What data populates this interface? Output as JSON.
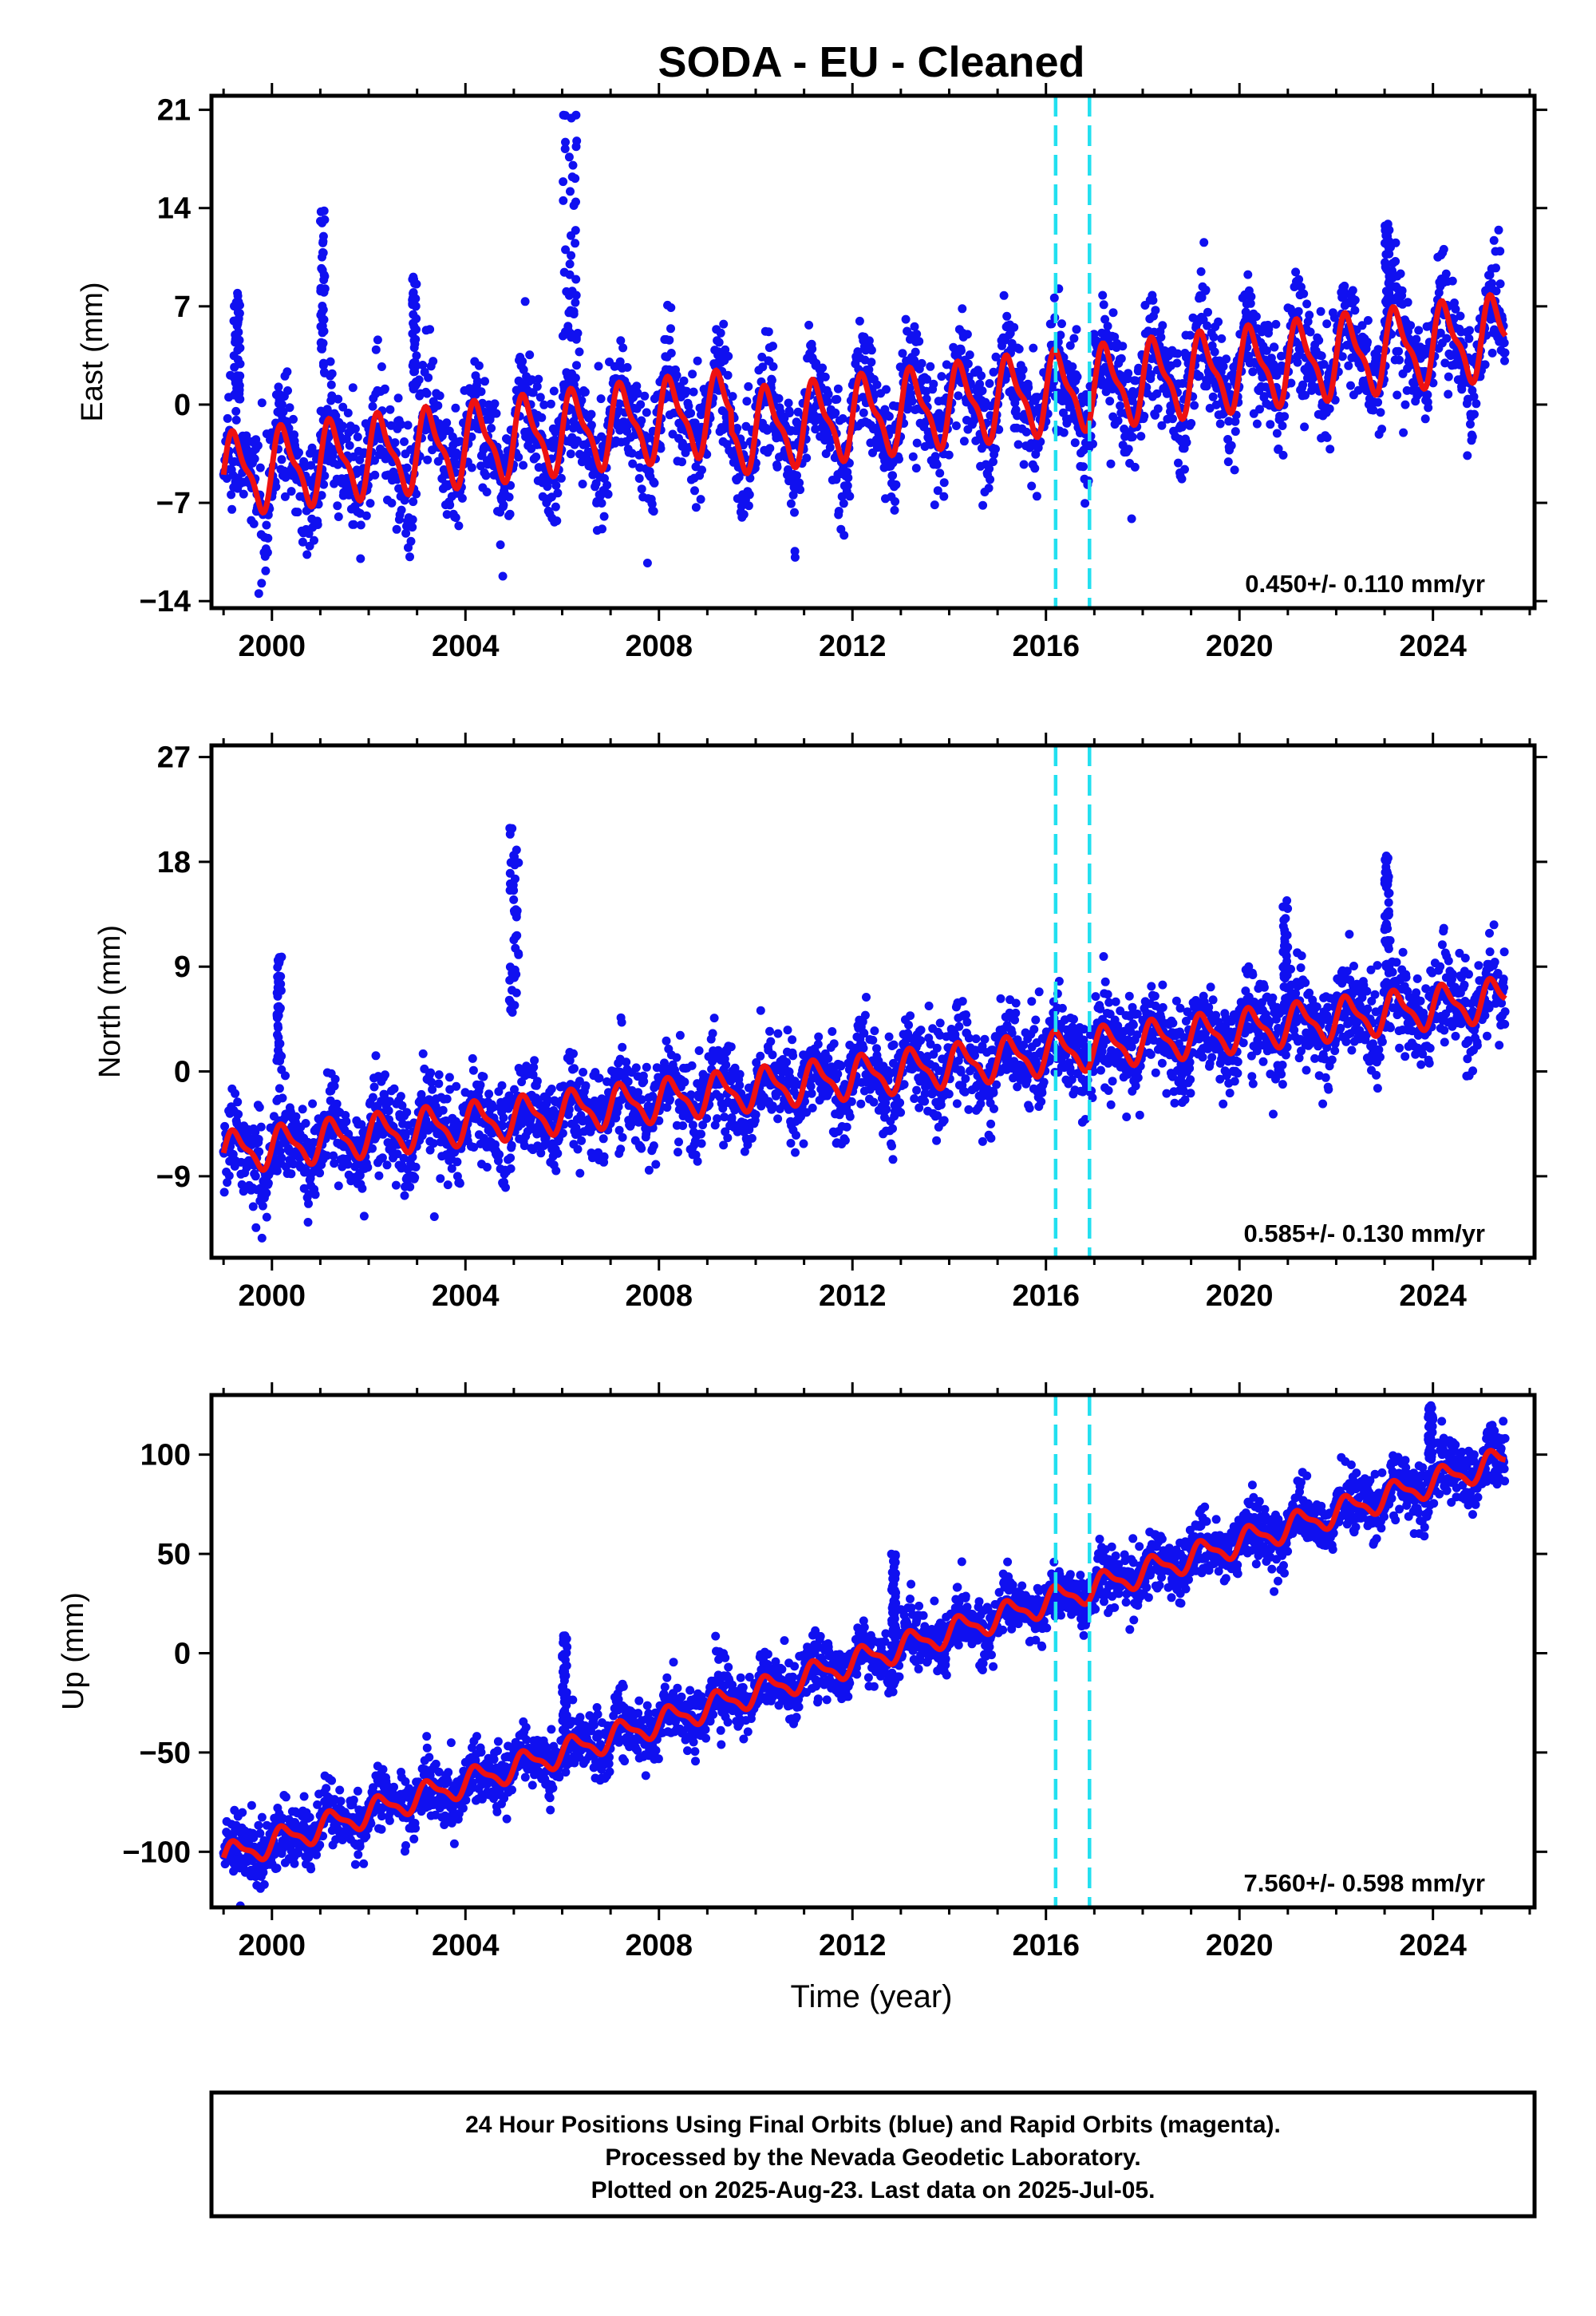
{
  "figure_title": "SODA  - EU - Cleaned",
  "xlabel": "Time (year)",
  "footer": {
    "lines": [
      "24 Hour Positions Using Final Orbits (blue) and Rapid Orbits (magenta).",
      "Processed by the Nevada Geodetic Laboratory.",
      "Plotted on 2025-Aug-23. Last data on 2025-Jul-05."
    ]
  },
  "colors": {
    "points": "#1010f0",
    "model": "#ee1111",
    "events": "#22e0f0",
    "frame": "#000000"
  },
  "chart_data": [
    {
      "type": "scatter",
      "ylabel": "East (mm)",
      "rate": "0.450+/- 0.110 mm/yr",
      "xlim": [
        1998.75,
        2026.1
      ],
      "ylim": [
        -14.5,
        22
      ],
      "xticks": [
        2000,
        2004,
        2008,
        2012,
        2016,
        2020,
        2024
      ],
      "yticks": [
        -14,
        -7,
        0,
        7,
        14,
        21
      ],
      "ytick_labels": [
        "−14",
        "−7",
        "0",
        "7",
        "14",
        "21"
      ],
      "event_lines": [
        2016.2,
        2016.9
      ],
      "data_range": [
        1999.0,
        2025.5
      ],
      "model": {
        "start": -5.0,
        "rate": 0.43,
        "step": {
          "at": 2009.5,
          "size": -1.5
        },
        "seasonal_amplitude": 2.6,
        "noise": 1.9
      },
      "spikes": [
        {
          "x": [
            2006.0,
            2006.3
          ],
          "y": [
            4,
            21
          ]
        },
        {
          "x": [
            2001.0,
            2001.1
          ],
          "y": [
            2,
            14
          ]
        },
        {
          "x": [
            2002.9,
            2003.0
          ],
          "y": [
            1,
            10
          ]
        },
        {
          "x": [
            1999.2,
            1999.35
          ],
          "y": [
            0,
            8
          ]
        },
        {
          "x": [
            2023.0,
            2023.1
          ],
          "y": [
            5,
            13
          ]
        }
      ],
      "series": [
        {
          "name": "",
          "values": []
        }
      ]
    },
    {
      "type": "scatter",
      "ylabel": "North (mm)",
      "rate": "0.585+/- 0.130 mm/yr",
      "xlim": [
        1998.75,
        2026.1
      ],
      "ylim": [
        -16,
        28
      ],
      "xticks": [
        2000,
        2004,
        2008,
        2012,
        2016,
        2020,
        2024
      ],
      "yticks": [
        -9,
        0,
        9,
        18,
        27
      ],
      "ytick_labels": [
        "−9",
        "0",
        "9",
        "18",
        "27"
      ],
      "event_lines": [
        2016.2,
        2016.9
      ],
      "data_range": [
        1999.0,
        2025.5
      ],
      "model": {
        "start": -7.0,
        "rate": 0.5,
        "step": null,
        "seasonal_amplitude": 1.6,
        "noise": 1.8
      },
      "spikes": [
        {
          "x": [
            2004.9,
            2005.1
          ],
          "y": [
            5,
            21
          ]
        },
        {
          "x": [
            2000.1,
            2000.2
          ],
          "y": [
            0,
            10
          ]
        },
        {
          "x": [
            2023.0,
            2023.1
          ],
          "y": [
            8,
            19
          ]
        },
        {
          "x": [
            2020.9,
            2021.0
          ],
          "y": [
            5,
            15
          ]
        }
      ],
      "series": [
        {
          "name": "",
          "values": []
        }
      ]
    },
    {
      "type": "scatter",
      "ylabel": "Up (mm)",
      "rate": "7.560+/- 0.598 mm/yr",
      "xlim": [
        1998.75,
        2026.1
      ],
      "ylim": [
        -128,
        130
      ],
      "xticks": [
        2000,
        2004,
        2008,
        2012,
        2016,
        2020,
        2024
      ],
      "yticks": [
        -100,
        -50,
        0,
        50,
        100
      ],
      "ytick_labels": [
        "−100",
        "−50",
        "0",
        "50",
        "100"
      ],
      "event_lines": [
        2016.2,
        2016.9
      ],
      "data_range": [
        1999.0,
        2025.5
      ],
      "model": {
        "start": -103,
        "rate": 7.56,
        "step": null,
        "seasonal_amplitude": 6,
        "noise": 7
      },
      "spikes": [
        {
          "x": [
            2006.0,
            2006.1
          ],
          "y": [
            -40,
            10
          ]
        },
        {
          "x": [
            2012.8,
            2012.9
          ],
          "y": [
            5,
            50
          ]
        },
        {
          "x": [
            2023.9,
            2024.0
          ],
          "y": [
            95,
            125
          ]
        }
      ],
      "series": [
        {
          "name": "",
          "values": []
        }
      ]
    }
  ]
}
